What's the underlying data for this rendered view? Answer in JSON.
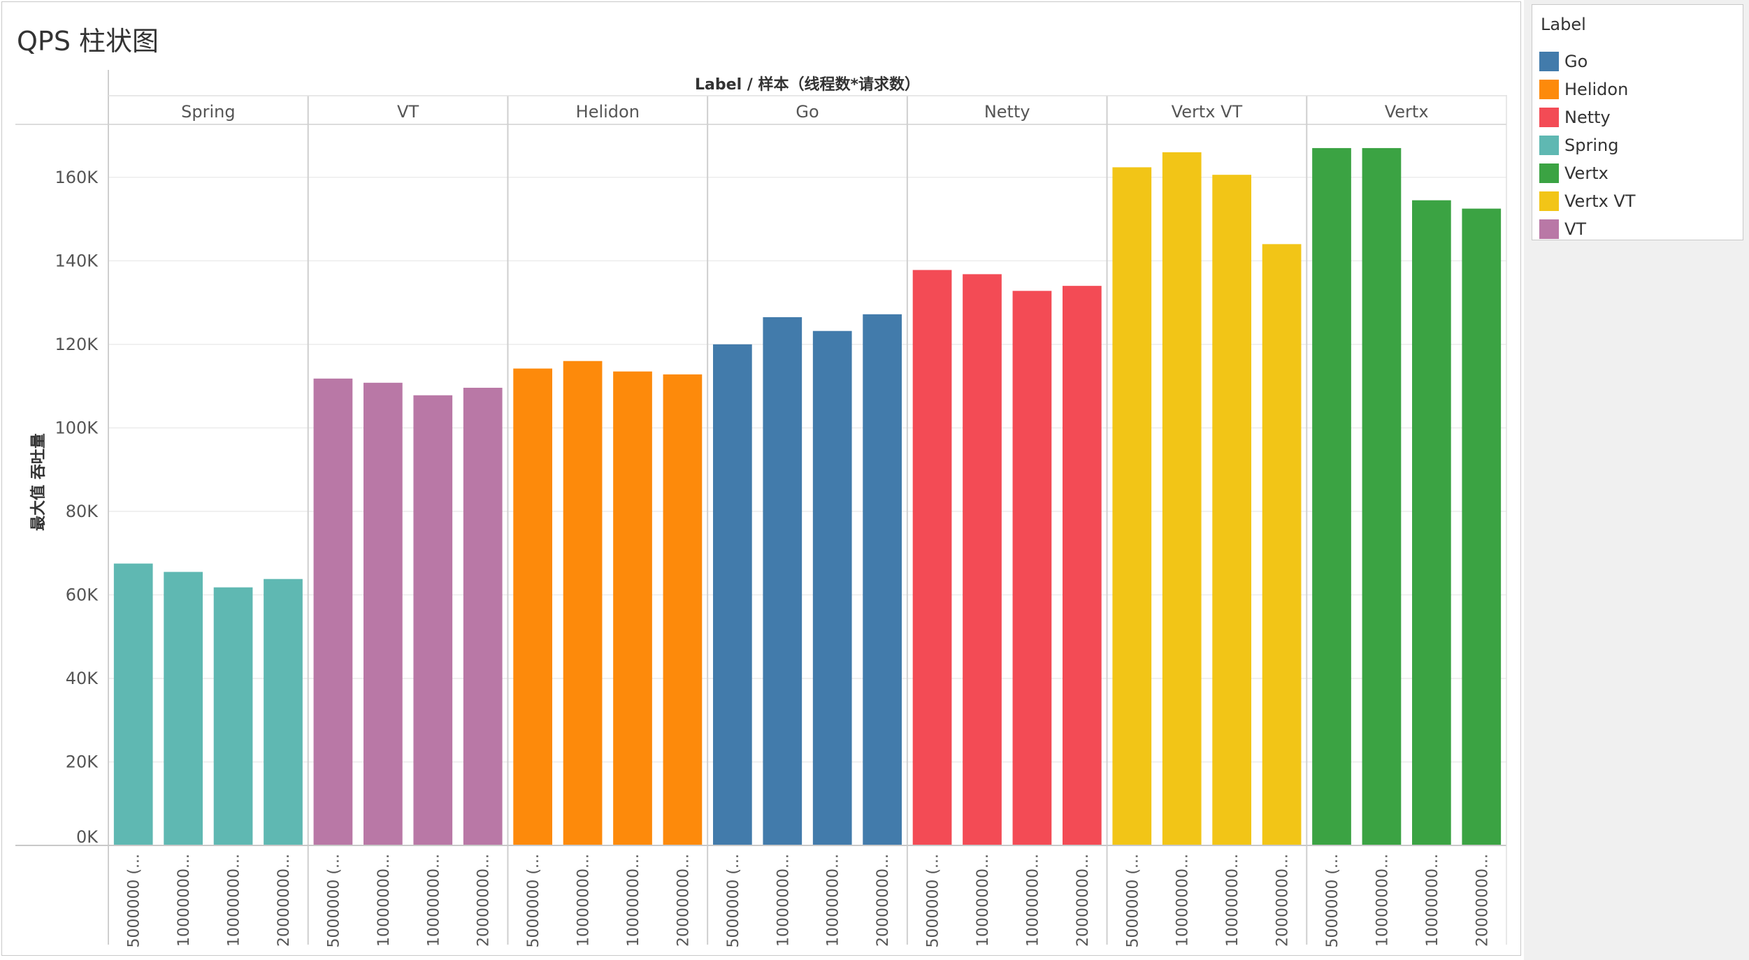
{
  "title": "QPS 柱状图",
  "chart_data": {
    "type": "bar",
    "header_label": "Label  /  样本（线程数*请求数）",
    "ylabel": "最大值 吞吐量",
    "ylim": [
      0,
      170000
    ],
    "yticks": [
      {
        "value": 0,
        "label": "0K"
      },
      {
        "value": 20000,
        "label": "20K"
      },
      {
        "value": 40000,
        "label": "40K"
      },
      {
        "value": 60000,
        "label": "60K"
      },
      {
        "value": 80000,
        "label": "80K"
      },
      {
        "value": 100000,
        "label": "100K"
      },
      {
        "value": 120000,
        "label": "120K"
      },
      {
        "value": 140000,
        "label": "140K"
      },
      {
        "value": 160000,
        "label": "160K"
      }
    ],
    "sample_labels": [
      "5000000 (...",
      "10000000...",
      "10000000...",
      "20000000..."
    ],
    "groups": [
      {
        "name": "Spring",
        "color": "#5fb8b2",
        "values": [
          67500,
          65500,
          61800,
          63800
        ]
      },
      {
        "name": "VT",
        "color": "#b978a6",
        "values": [
          111800,
          110800,
          107800,
          109600
        ]
      },
      {
        "name": "Helidon",
        "color": "#fd8a0b",
        "values": [
          114200,
          116000,
          113500,
          112800
        ]
      },
      {
        "name": "Go",
        "color": "#427bab",
        "values": [
          120000,
          126500,
          123200,
          127200
        ]
      },
      {
        "name": "Netty",
        "color": "#f34b55",
        "values": [
          137800,
          136800,
          132800,
          134000
        ]
      },
      {
        "name": "Vertx VT",
        "color": "#f2c517",
        "values": [
          162400,
          166000,
          160600,
          144000
        ]
      },
      {
        "name": "Vertx",
        "color": "#3ba343",
        "values": [
          167000,
          167000,
          154500,
          152500
        ]
      }
    ]
  },
  "legend": {
    "title": "Label",
    "items": [
      {
        "label": "Go",
        "color": "#427bab"
      },
      {
        "label": "Helidon",
        "color": "#fd8a0b"
      },
      {
        "label": "Netty",
        "color": "#f34b55"
      },
      {
        "label": "Spring",
        "color": "#5fb8b2"
      },
      {
        "label": "Vertx",
        "color": "#3ba343"
      },
      {
        "label": "Vertx VT",
        "color": "#f2c517"
      },
      {
        "label": "VT",
        "color": "#b978a6"
      }
    ]
  }
}
